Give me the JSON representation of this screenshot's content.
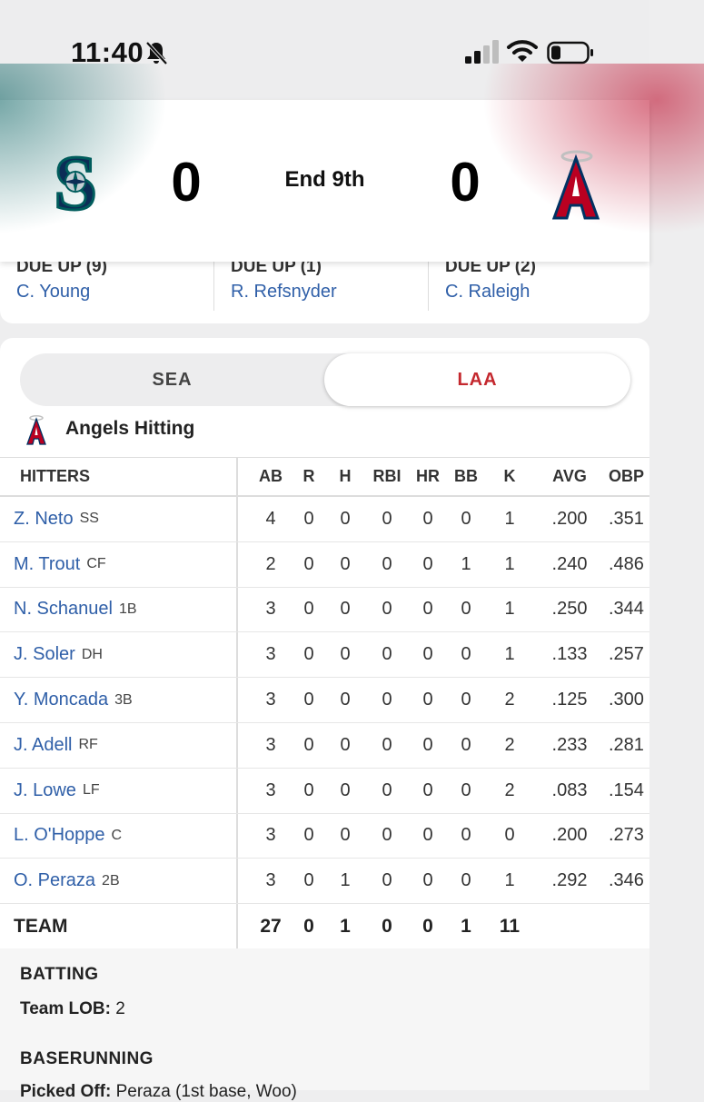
{
  "status_bar": {
    "time": "11:40"
  },
  "scoreboard": {
    "away": {
      "abbr": "SEA",
      "score": "0",
      "logo": "mariners-s-compass"
    },
    "home": {
      "abbr": "LAA",
      "score": "0",
      "logo": "angels-a-halo"
    },
    "inning": "End 9th"
  },
  "due_up": [
    {
      "label": "DUE UP (9)",
      "player": "C. Young"
    },
    {
      "label": "DUE UP (1)",
      "player": "R. Refsnyder"
    },
    {
      "label": "DUE UP (2)",
      "player": "C. Raleigh"
    }
  ],
  "team_toggle": {
    "options": [
      "SEA",
      "LAA"
    ],
    "selected": "LAA"
  },
  "section_title": "Angels Hitting",
  "table": {
    "headers": [
      "HITTERS",
      "AB",
      "R",
      "H",
      "RBI",
      "HR",
      "BB",
      "K",
      "AVG",
      "OBP"
    ],
    "rows": [
      {
        "name": "Z. Neto",
        "pos": "SS",
        "ab": "4",
        "r": "0",
        "h": "0",
        "rbi": "0",
        "hr": "0",
        "bb": "0",
        "k": "1",
        "avg": ".200",
        "obp": ".351"
      },
      {
        "name": "M. Trout",
        "pos": "CF",
        "ab": "2",
        "r": "0",
        "h": "0",
        "rbi": "0",
        "hr": "0",
        "bb": "1",
        "k": "1",
        "avg": ".240",
        "obp": ".486"
      },
      {
        "name": "N. Schanuel",
        "pos": "1B",
        "ab": "3",
        "r": "0",
        "h": "0",
        "rbi": "0",
        "hr": "0",
        "bb": "0",
        "k": "1",
        "avg": ".250",
        "obp": ".344"
      },
      {
        "name": "J. Soler",
        "pos": "DH",
        "ab": "3",
        "r": "0",
        "h": "0",
        "rbi": "0",
        "hr": "0",
        "bb": "0",
        "k": "1",
        "avg": ".133",
        "obp": ".257"
      },
      {
        "name": "Y. Moncada",
        "pos": "3B",
        "ab": "3",
        "r": "0",
        "h": "0",
        "rbi": "0",
        "hr": "0",
        "bb": "0",
        "k": "2",
        "avg": ".125",
        "obp": ".300"
      },
      {
        "name": "J. Adell",
        "pos": "RF",
        "ab": "3",
        "r": "0",
        "h": "0",
        "rbi": "0",
        "hr": "0",
        "bb": "0",
        "k": "2",
        "avg": ".233",
        "obp": ".281"
      },
      {
        "name": "J. Lowe",
        "pos": "LF",
        "ab": "3",
        "r": "0",
        "h": "0",
        "rbi": "0",
        "hr": "0",
        "bb": "0",
        "k": "2",
        "avg": ".083",
        "obp": ".154"
      },
      {
        "name": "L. O'Hoppe",
        "pos": "C",
        "ab": "3",
        "r": "0",
        "h": "0",
        "rbi": "0",
        "hr": "0",
        "bb": "0",
        "k": "0",
        "avg": ".200",
        "obp": ".273"
      },
      {
        "name": "O. Peraza",
        "pos": "2B",
        "ab": "3",
        "r": "0",
        "h": "1",
        "rbi": "0",
        "hr": "0",
        "bb": "0",
        "k": "1",
        "avg": ".292",
        "obp": ".346"
      }
    ],
    "totals": {
      "name": "TEAM",
      "ab": "27",
      "r": "0",
      "h": "1",
      "rbi": "0",
      "hr": "0",
      "bb": "1",
      "k": "11"
    }
  },
  "notes": {
    "batting_title": "BATTING",
    "team_lob_label": "Team LOB:",
    "team_lob_value": "2",
    "baserunning_title": "BASERUNNING",
    "picked_off_label": "Picked Off:",
    "picked_off_value": "Peraza (1st base, Woo)"
  },
  "colors": {
    "link_blue": "#2f5fa8",
    "angels_red": "#c4282e",
    "mariners_teal": "#005c5c"
  }
}
